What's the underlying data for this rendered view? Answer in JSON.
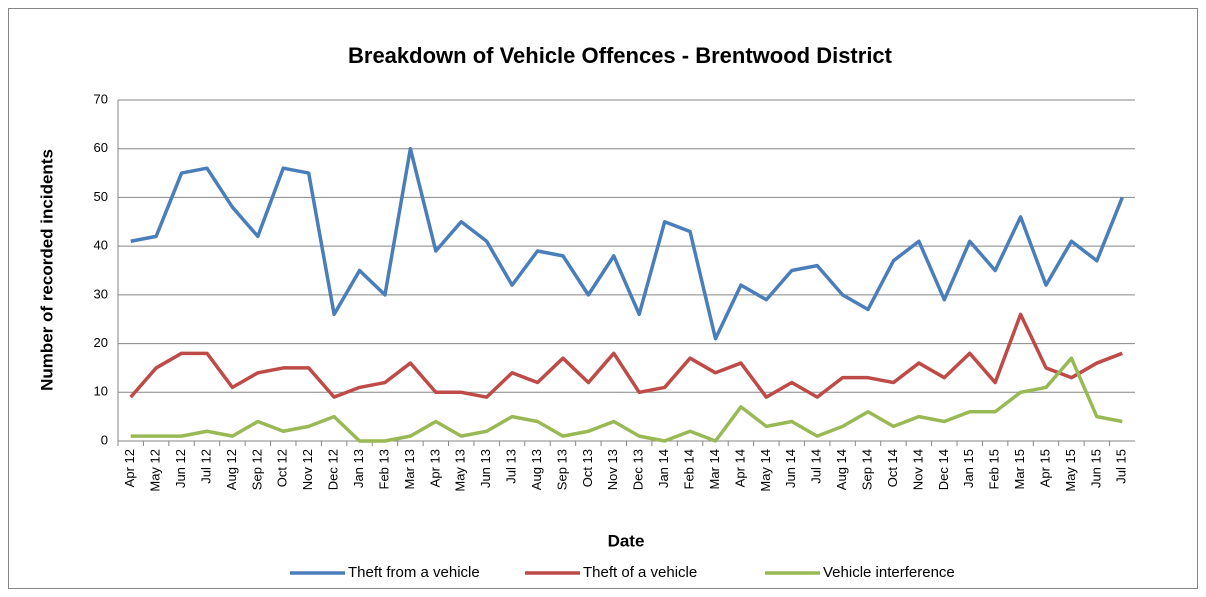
{
  "chart_data": {
    "type": "line",
    "title": "Breakdown of Vehicle Offences - Brentwood District",
    "x_label": "Date",
    "y_label": "Number of recorded incidents",
    "categories": [
      "Apr 12",
      "May 12",
      "Jun 12",
      "Jul 12",
      "Aug 12",
      "Sep 12",
      "Oct 12",
      "Nov 12",
      "Dec 12",
      "Jan 13",
      "Feb 13",
      "Mar 13",
      "Apr 13",
      "May 13",
      "Jun 13",
      "Jul 13",
      "Aug 13",
      "Sep 13",
      "Oct 13",
      "Nov 13",
      "Dec 13",
      "Jan 14",
      "Feb 14",
      "Mar 14",
      "Apr 14",
      "May 14",
      "Jun 14",
      "Jul 14",
      "Aug 14",
      "Sep 14",
      "Oct 14",
      "Nov 14",
      "Dec 14",
      "Jan 15",
      "Feb 15",
      "Mar 15",
      "Apr 15",
      "May 15",
      "Jun 15",
      "Jul 15"
    ],
    "series": [
      {
        "name": "Theft from a vehicle",
        "color": "#4a7ebb",
        "values": [
          41,
          42,
          55,
          56,
          48,
          42,
          56,
          55,
          26,
          35,
          30,
          60,
          39,
          45,
          41,
          32,
          39,
          38,
          30,
          38,
          26,
          45,
          43,
          21,
          32,
          29,
          35,
          36,
          30,
          27,
          37,
          41,
          29,
          41,
          35,
          46,
          32,
          41,
          37,
          50
        ]
      },
      {
        "name": "Theft of a vehicle",
        "color": "#be4b48",
        "values": [
          9,
          15,
          18,
          18,
          11,
          14,
          15,
          15,
          9,
          11,
          12,
          16,
          10,
          10,
          9,
          14,
          12,
          17,
          12,
          18,
          10,
          11,
          17,
          14,
          16,
          9,
          12,
          9,
          13,
          13,
          12,
          16,
          13,
          18,
          12,
          26,
          15,
          13,
          16,
          18
        ]
      },
      {
        "name": "Vehicle interference",
        "color": "#98b954",
        "values": [
          1,
          1,
          1,
          2,
          1,
          4,
          2,
          3,
          5,
          0,
          0,
          1,
          4,
          1,
          2,
          5,
          4,
          1,
          2,
          4,
          1,
          0,
          2,
          0,
          7,
          3,
          4,
          1,
          3,
          6,
          3,
          5,
          4,
          6,
          6,
          10,
          11,
          17,
          5,
          4
        ]
      }
    ],
    "ylim": [
      0,
      70
    ],
    "yticks": [
      0,
      10,
      20,
      30,
      40,
      50,
      60,
      70
    ],
    "grid": true,
    "legend": "bottom"
  }
}
